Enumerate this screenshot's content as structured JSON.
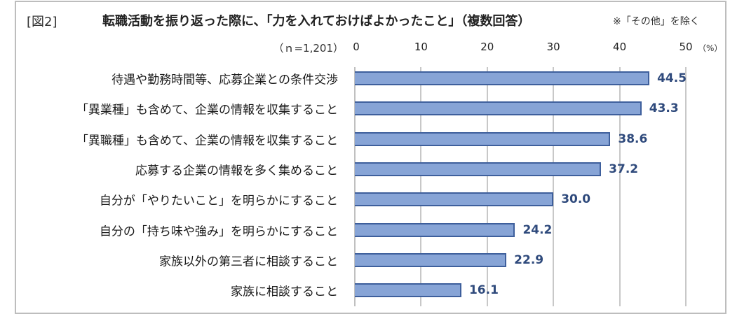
{
  "figure": {
    "label": "[図2]",
    "title": "転職活動を振り返った際に、「力を入れておけばよかったこと」（複数回答）",
    "note": "※「その他」を除く",
    "sample": "（ｎ=1,201）",
    "unit": "（%）"
  },
  "chart_data": {
    "type": "bar",
    "orientation": "horizontal",
    "title": "転職活動を振り返った際に、「力を入れておけばよかったこと」（複数回答）",
    "subtitle": "※「その他」を除く",
    "sample_size": "n=1,201",
    "xlabel": "%",
    "ylabel": "",
    "xlim": [
      0,
      50
    ],
    "xticks": [
      "0",
      "10",
      "20",
      "30",
      "40",
      "50"
    ],
    "grid": true,
    "legend": null,
    "bar_color": "#87a4d6",
    "bar_edge_color": "#3e5f9c",
    "label_color": "#2f4a7c",
    "categories": [
      "待遇や勤務時間等、応募企業との条件交渉",
      "「異業種」も含めて、企業の情報を収集すること",
      "「異職種」も含めて、企業の情報を収集すること",
      "応募する企業の情報を多く集めること",
      "自分が「やりたいこと」を明らかにすること",
      "自分の「持ち味や強み」を明らかにすること",
      "家族以外の第三者に相談すること",
      "家族に相談すること"
    ],
    "values": [
      44.5,
      43.3,
      38.6,
      37.2,
      30.0,
      24.2,
      22.9,
      16.1
    ],
    "value_labels": [
      "44.5",
      "43.3",
      "38.6",
      "37.2",
      "30.0",
      "24.2",
      "22.9",
      "16.1"
    ]
  }
}
